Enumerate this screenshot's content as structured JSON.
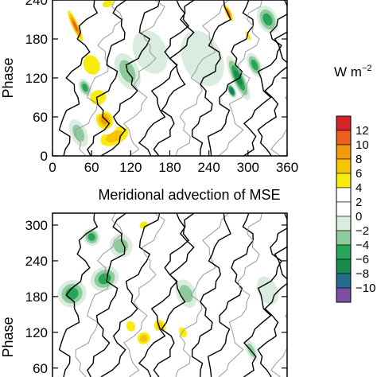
{
  "chart_data": [
    {
      "type": "heatmap",
      "panel": "top",
      "title": "",
      "xlabel": "",
      "ylabel": "Phase",
      "xlim": [
        0,
        360
      ],
      "ylim": [
        0,
        240
      ],
      "xticks": [
        "0",
        "60",
        "120",
        "180",
        "240",
        "300",
        "360"
      ],
      "yticks": [
        "0",
        "60",
        "120",
        "180",
        "240"
      ],
      "blobs": [
        {
          "x": 95,
          "y": 30,
          "v": 8,
          "w": 80,
          "h": 45
        },
        {
          "x": 80,
          "y": 55,
          "v": 10,
          "w": 40,
          "h": 45
        },
        {
          "x": 70,
          "y": 90,
          "v": 6,
          "w": 55,
          "h": 50
        },
        {
          "x": 60,
          "y": 140,
          "v": 5,
          "w": 55,
          "h": 70
        },
        {
          "x": 35,
          "y": 200,
          "v": 12,
          "w": 14,
          "h": 75
        },
        {
          "x": 20,
          "y": 150,
          "v": 4,
          "w": 30,
          "h": 60
        },
        {
          "x": 145,
          "y": 60,
          "v": 4,
          "w": 50,
          "h": 40
        },
        {
          "x": 190,
          "y": 80,
          "v": 4,
          "w": 110,
          "h": 60
        },
        {
          "x": 230,
          "y": 45,
          "v": 2,
          "w": 80,
          "h": 40
        },
        {
          "x": 320,
          "y": 60,
          "v": 2,
          "w": 55,
          "h": 40
        },
        {
          "x": 175,
          "y": 210,
          "v": 3,
          "w": 35,
          "h": 30
        },
        {
          "x": 230,
          "y": 150,
          "v": -2,
          "w": 60,
          "h": 90
        },
        {
          "x": 150,
          "y": 160,
          "v": -2,
          "w": 50,
          "h": 70
        },
        {
          "x": 270,
          "y": 220,
          "v": 12,
          "w": 12,
          "h": 40
        },
        {
          "x": 285,
          "y": 120,
          "v": -8,
          "w": 20,
          "h": 75
        },
        {
          "x": 275,
          "y": 100,
          "v": -10,
          "w": 12,
          "h": 24
        },
        {
          "x": 310,
          "y": 140,
          "v": -6,
          "w": 20,
          "h": 40
        },
        {
          "x": 330,
          "y": 210,
          "v": -6,
          "w": 30,
          "h": 45
        },
        {
          "x": 300,
          "y": 185,
          "v": 6,
          "w": 12,
          "h": 35
        },
        {
          "x": 40,
          "y": 35,
          "v": -4,
          "w": 25,
          "h": 45
        },
        {
          "x": 50,
          "y": 105,
          "v": -6,
          "w": 18,
          "h": 30
        },
        {
          "x": 115,
          "y": 130,
          "v": -4,
          "w": 35,
          "h": 60
        },
        {
          "x": 150,
          "y": 30,
          "v": 3,
          "w": 40,
          "h": 25
        },
        {
          "x": 85,
          "y": 235,
          "v": 6,
          "w": 40,
          "h": 25
        }
      ]
    },
    {
      "type": "heatmap",
      "panel": "bottom",
      "title": "Meridional advection of MSE",
      "xlabel": "",
      "ylabel": "Phase",
      "xlim": [
        0,
        360
      ],
      "ylim": [
        45,
        320
      ],
      "yticks": [
        "60",
        "120",
        "180",
        "240",
        "300"
      ],
      "blobs": [
        {
          "x": 140,
          "y": 110,
          "v": 8,
          "w": 35,
          "h": 35
        },
        {
          "x": 120,
          "y": 130,
          "v": 6,
          "w": 30,
          "h": 40
        },
        {
          "x": 165,
          "y": 130,
          "v": 7,
          "w": 30,
          "h": 40
        },
        {
          "x": 170,
          "y": 100,
          "v": 4,
          "w": 40,
          "h": 50
        },
        {
          "x": 200,
          "y": 120,
          "v": 5,
          "w": 25,
          "h": 40
        },
        {
          "x": 125,
          "y": 180,
          "v": 4,
          "w": 45,
          "h": 40
        },
        {
          "x": 110,
          "y": 250,
          "v": 4,
          "w": 40,
          "h": 35
        },
        {
          "x": 140,
          "y": 300,
          "v": 5,
          "w": 30,
          "h": 25
        },
        {
          "x": 60,
          "y": 110,
          "v": 4,
          "w": 25,
          "h": 35
        },
        {
          "x": 20,
          "y": 120,
          "v": 3,
          "w": 25,
          "h": 40
        },
        {
          "x": 30,
          "y": 60,
          "v": 4,
          "w": 30,
          "h": 25
        },
        {
          "x": 120,
          "y": 65,
          "v": 3,
          "w": 35,
          "h": 25
        },
        {
          "x": 215,
          "y": 70,
          "v": 3,
          "w": 25,
          "h": 25
        },
        {
          "x": 250,
          "y": 80,
          "v": 2,
          "w": 15,
          "h": 25
        },
        {
          "x": 30,
          "y": 185,
          "v": -6,
          "w": 45,
          "h": 45
        },
        {
          "x": 80,
          "y": 210,
          "v": -6,
          "w": 45,
          "h": 40
        },
        {
          "x": 105,
          "y": 265,
          "v": -4,
          "w": 35,
          "h": 40
        },
        {
          "x": 60,
          "y": 280,
          "v": -6,
          "w": 25,
          "h": 30
        },
        {
          "x": 205,
          "y": 185,
          "v": -4,
          "w": 30,
          "h": 50
        },
        {
          "x": 330,
          "y": 190,
          "v": -2,
          "w": 30,
          "h": 50
        },
        {
          "x": 305,
          "y": 90,
          "v": -4,
          "w": 15,
          "h": 40
        },
        {
          "x": 280,
          "y": 200,
          "v": 3,
          "w": 10,
          "h": 20
        },
        {
          "x": 345,
          "y": 250,
          "v": 2,
          "w": 12,
          "h": 20
        }
      ]
    }
  ],
  "colorbar": {
    "unit_main": "W m",
    "unit_exp": "−2",
    "levels": [
      -12,
      -10,
      -8,
      -6,
      -4,
      -2,
      0,
      2,
      4,
      6,
      8,
      10,
      12,
      14
    ],
    "colors": [
      "#7b4ea3",
      "#246c8c",
      "#178a4e",
      "#27a657",
      "#8fca9c",
      "#d9ecdf",
      "#ffffff",
      "#ffffff",
      "#f8ec0f",
      "#f7c500",
      "#f29a0c",
      "#e9601f",
      "#d3242a"
    ],
    "labels": [
      "12",
      "10",
      "8",
      "6",
      "4",
      "2",
      "0",
      "−2",
      "−4",
      "−6",
      "−8",
      "−10"
    ]
  }
}
